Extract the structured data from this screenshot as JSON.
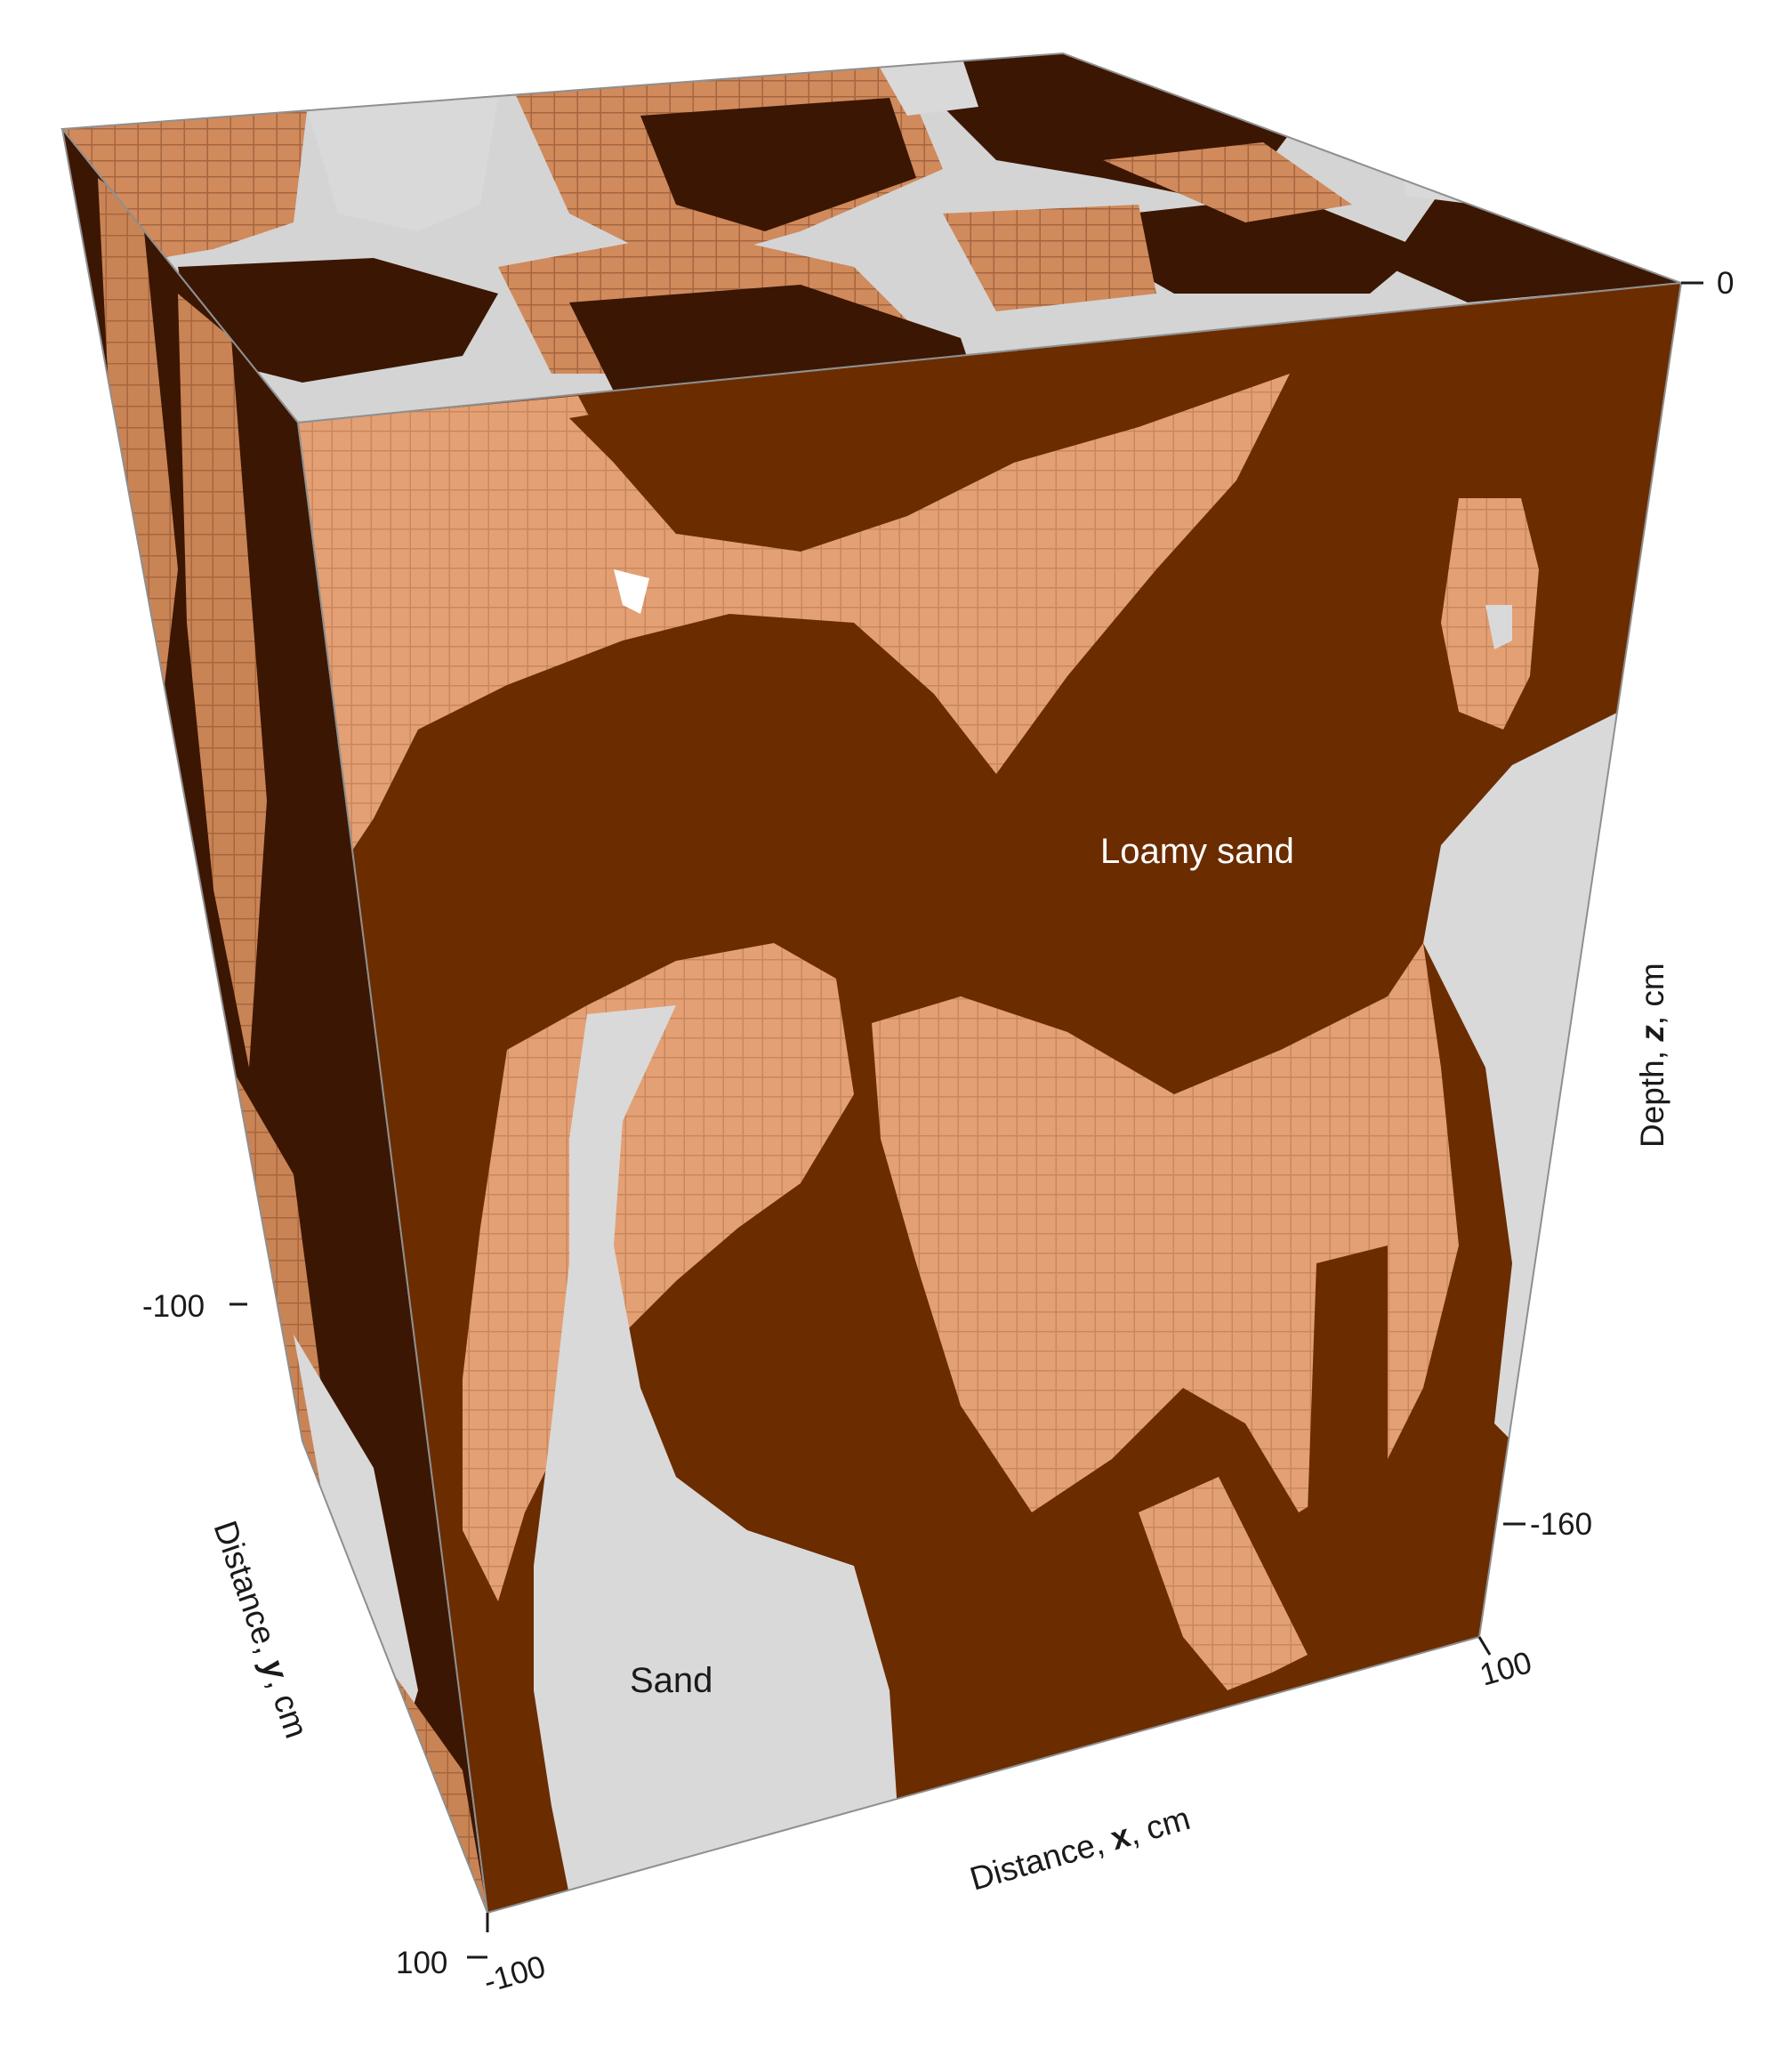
{
  "colors": {
    "loamy_sand": "#6b2c00",
    "loamy_sand_dark": "#3b1603",
    "sand_light": "#e3a074",
    "sand_mid": "#c07a4e",
    "void": "#d9d9d9",
    "box_edge": "#8f8f8f"
  },
  "labels": {
    "loamy_sand": "Loamy sand",
    "sand": "Sand"
  },
  "axes": {
    "x": {
      "prefix": "Distance, ",
      "var": "x",
      "suffix": ", cm",
      "tick_min": "-100",
      "tick_max": "100"
    },
    "y": {
      "prefix": "Distance, ",
      "var": "y",
      "suffix": ", cm",
      "tick_min": "-100",
      "tick_max": "100"
    },
    "z": {
      "prefix": "Depth, ",
      "var": "z",
      "suffix": ", cm",
      "tick_top": "0",
      "tick_bottom": "-160"
    }
  }
}
